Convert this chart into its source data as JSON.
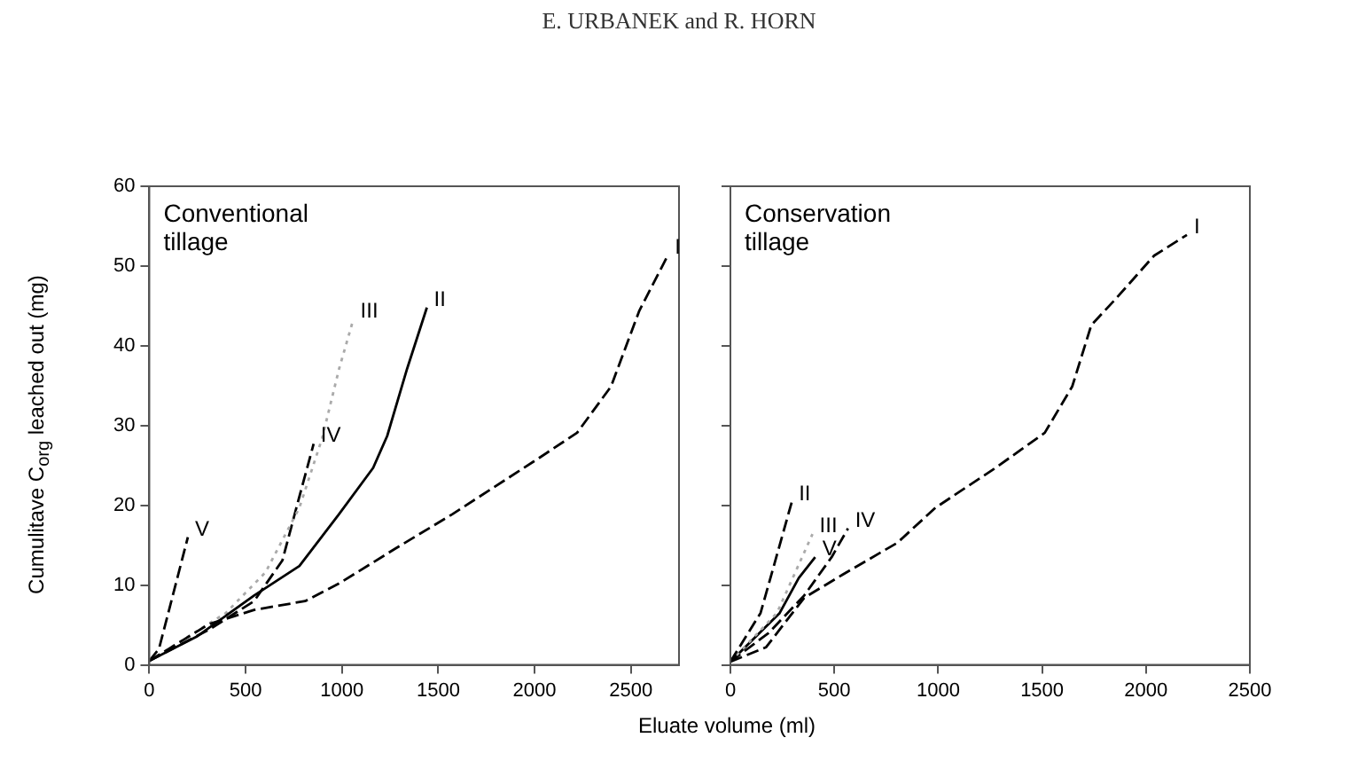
{
  "chart_data": [
    {
      "type": "line",
      "title": "Conventional tillage",
      "xlabel": "Eluate volume (ml)",
      "ylabel": "Cumulitave C$_{org}$ leached out (mg)",
      "annotations": [
        "E. URBANEK and R. HORN"
      ],
      "xlim": [
        0,
        2750
      ],
      "xticks": [
        0,
        500,
        1000,
        1500,
        2000,
        2500
      ],
      "ylim": [
        0,
        60
      ],
      "yticks": [
        0,
        10,
        20,
        30,
        40,
        50,
        60
      ],
      "grid": false,
      "legend": false,
      "marker": "none",
      "series": [
        {
          "name": "I",
          "color": "#000000",
          "line_style": "dashed",
          "x": [
            0,
            309,
            544,
            809,
            985,
            1279,
            1574,
            2015,
            2221,
            2397,
            2544,
            2691
          ],
          "values": [
            0.5,
            5.1,
            6.9,
            8.0,
            10.2,
            14.6,
            18.9,
            25.8,
            29.1,
            34.9,
            44.4,
            51.3
          ]
        },
        {
          "name": "II",
          "color": "#000000",
          "line_style": "solid",
          "x": [
            0,
            250,
            544,
            779,
            985,
            1162,
            1235,
            1338,
            1441
          ],
          "values": [
            0.5,
            3.6,
            8.7,
            12.4,
            18.9,
            24.7,
            28.7,
            37.1,
            44.8
          ]
        },
        {
          "name": "III",
          "color": "#aaaaaa",
          "line_style": "dotted",
          "x": [
            0,
            397,
            603,
            779,
            897,
            985,
            1059
          ],
          "values": [
            0.5,
            6.5,
            11.6,
            19.7,
            28.4,
            37.1,
            43.3
          ]
        },
        {
          "name": "IV",
          "color": "#000000",
          "line_style": "dashed",
          "x": [
            0,
            309,
            544,
            691,
            779,
            853
          ],
          "values": [
            0.5,
            4.4,
            8.0,
            13.1,
            21.1,
            27.7
          ]
        },
        {
          "name": "V",
          "color": "#000000",
          "line_style": "dashed",
          "x": [
            0,
            50,
            200
          ],
          "values": [
            0.5,
            2,
            16
          ]
        }
      ]
    },
    {
      "type": "line",
      "title": "Conservation tillage",
      "xlim": [
        0,
        2500
      ],
      "xticks": [
        0,
        500,
        1000,
        1500,
        2000,
        2500
      ],
      "ylim": [
        0,
        60
      ],
      "yticks": [
        0,
        10,
        20,
        30,
        40,
        50,
        60
      ],
      "tick_labels": "x",
      "grid": false,
      "legend": false,
      "marker": "none",
      "series": [
        {
          "name": "I",
          "color": "#000000",
          "line_style": "dashed",
          "x": [
            0,
            171,
            355,
            539,
            803,
            987,
            1276,
            1513,
            1645,
            1737,
            1855,
            2039,
            2197
          ],
          "values": [
            0.4,
            2.2,
            8.4,
            11.3,
            15.3,
            19.7,
            24.7,
            29.1,
            34.9,
            42.6,
            45.9,
            51.3,
            53.9
          ]
        },
        {
          "name": "II",
          "color": "#000000",
          "line_style": "dashed",
          "x": [
            0,
            145,
            224,
            295
          ],
          "values": [
            0.4,
            6.5,
            13.8,
            20.4
          ]
        },
        {
          "name": "III",
          "color": "#aaaaaa",
          "line_style": "dotted",
          "x": [
            0,
            224,
            395
          ],
          "values": [
            0.4,
            6.5,
            16.4
          ]
        },
        {
          "name": "IV",
          "color": "#000000",
          "line_style": "dashed",
          "x": [
            0,
            184,
            355,
            487,
            566
          ],
          "values": [
            0.4,
            4,
            8.7,
            13.5,
            17.1
          ]
        },
        {
          "name": "V",
          "color": "#000000",
          "line_style": "solid",
          "x": [
            0,
            237,
            329,
            408
          ],
          "values": [
            0.4,
            6.5,
            10.9,
            13.5
          ]
        }
      ]
    }
  ]
}
